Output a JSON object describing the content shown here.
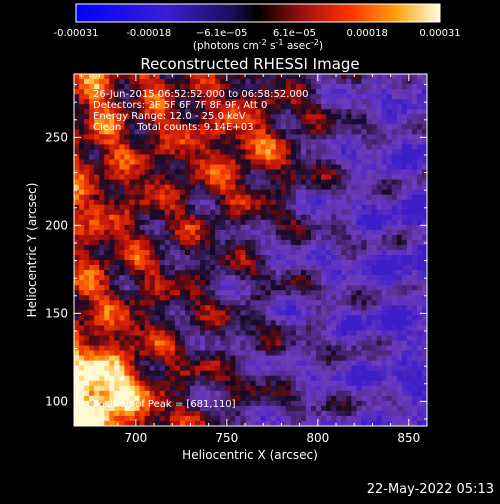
{
  "chart_data": {
    "type": "heatmap",
    "title": "Reconstructed RHESSI Image",
    "xlabel": "Heliocentric X (arcsec)",
    "ylabel": "Heliocentric Y (arcsec)",
    "xlim": [
      666,
      860
    ],
    "ylim": [
      86,
      286
    ],
    "x_ticks": [
      700,
      750,
      800,
      850
    ],
    "y_ticks": [
      100,
      150,
      200,
      250
    ],
    "colorbar": {
      "label_main": "(photons cm",
      "label_sup1": "-2",
      "label_mid": " s",
      "label_sup2": "-1",
      "label_end": " asec",
      "label_sup3": "-2",
      "label_close": ")",
      "ticks": [
        "-0.00031",
        "-0.00018",
        "−6.1e−05",
        "6.1e−05",
        "0.00018",
        "0.00031"
      ],
      "range": [
        -0.00031,
        0.00031
      ]
    },
    "annotations": [
      "26-Jun-2015 06:52:52.000 to 06:58:52.000",
      "Detectors: 3F 5F 6F 7F 8F 9F, Att 0",
      "Energy Range: 12.0 - 25.0 keV",
      "Clean     Total counts: 9.14E+03"
    ],
    "peak_label": "Position of Peak = [681,110]",
    "peak": [
      681,
      110
    ]
  },
  "footer": {
    "date": "22-May-2022 05:13"
  }
}
